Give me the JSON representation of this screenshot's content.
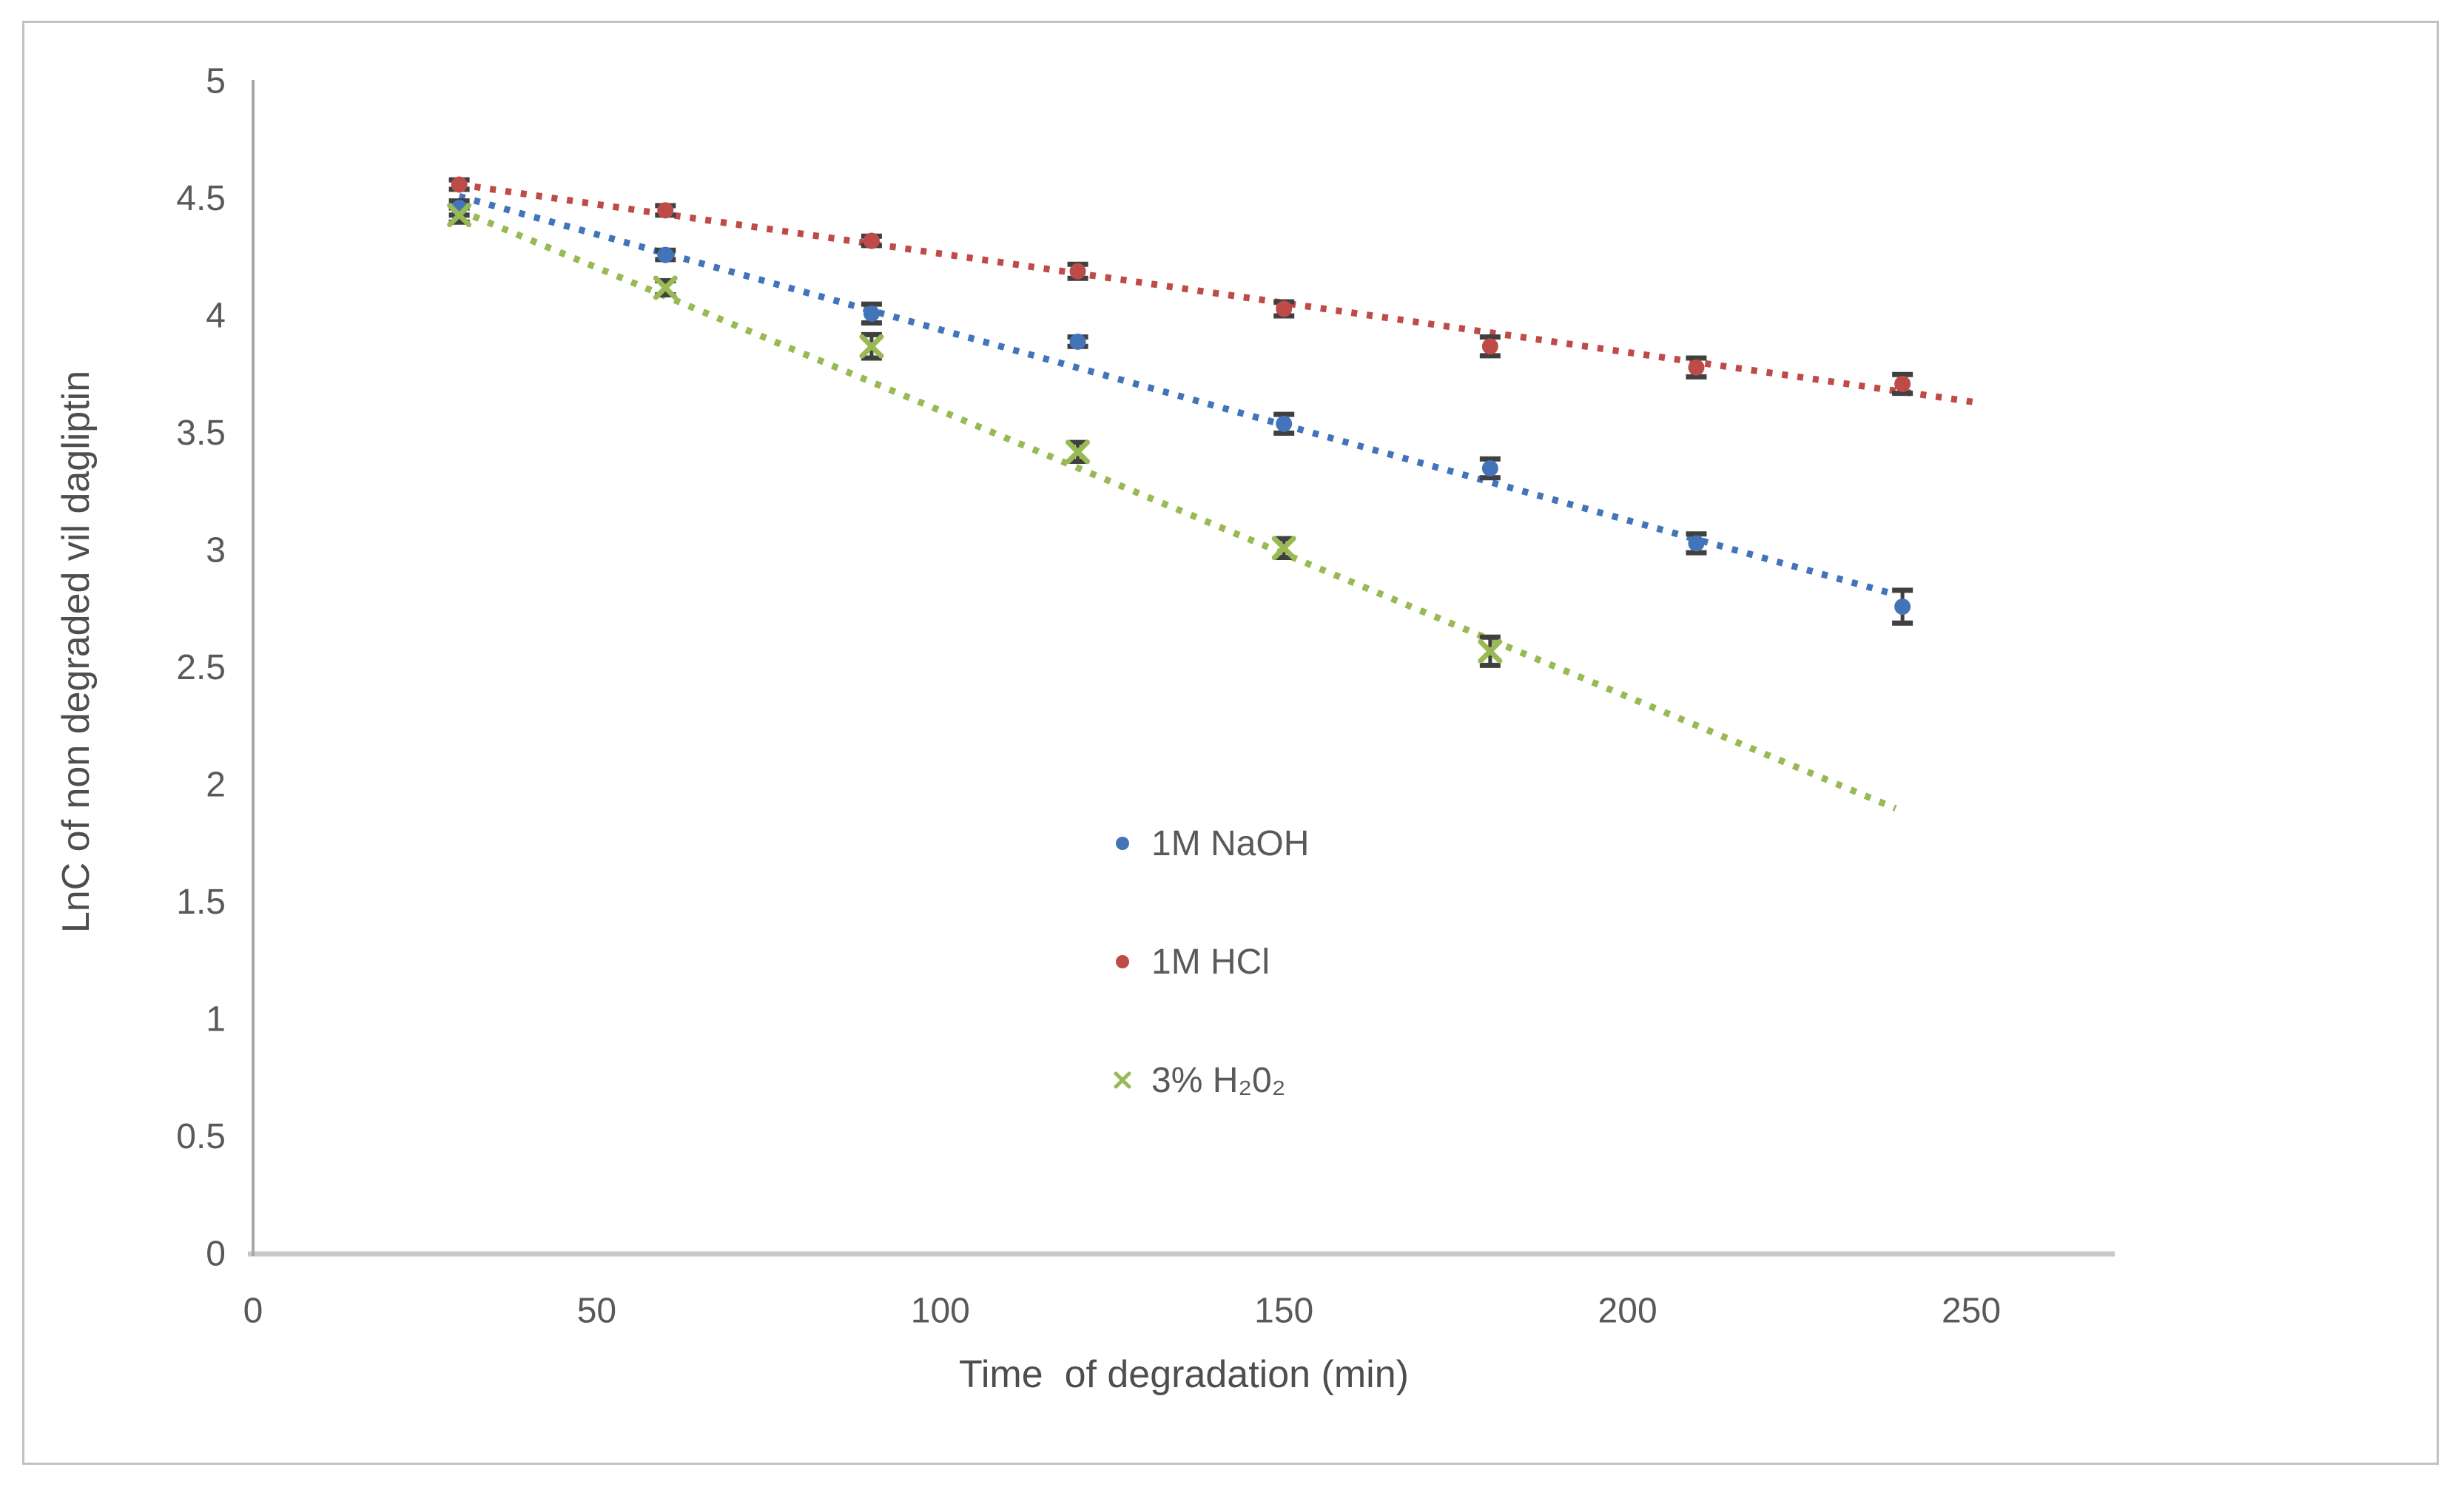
{
  "figure": {
    "background": "#ffffff",
    "border_color": "#c2c2c2",
    "axis_line_color_x": "#c9c9c9",
    "axis_line_color_y": "#a8a8a8",
    "error_bar_color": "#404040",
    "text_color": "#595959"
  },
  "chart_data": {
    "type": "scatter",
    "title": "",
    "xlabel": "Time  of degradation (min)",
    "ylabel": "LnC of non degraded vil dagliptin",
    "xlim": [
      0,
      271
    ],
    "ylim": [
      0,
      5
    ],
    "x_ticks": [
      0,
      50,
      100,
      150,
      200,
      250
    ],
    "x_tick_labels": [
      "0",
      "50",
      "100",
      "150",
      "200",
      "250"
    ],
    "y_ticks": [
      0,
      0.5,
      1,
      1.5,
      2,
      2.5,
      3,
      3.5,
      4,
      4.5,
      5
    ],
    "y_tick_labels": [
      "0",
      "0.5",
      "1",
      "1.5",
      "2",
      "2.5",
      "3",
      "3.5",
      "4",
      "4.5",
      "5"
    ],
    "grid": false,
    "legend_position": "center-right-lower",
    "series": [
      {
        "name": "1M NaOH",
        "color": "#4374b9",
        "marker": "circle",
        "line_style": "dotted",
        "x": [
          30,
          60,
          90,
          120,
          150,
          180,
          210,
          240
        ],
        "y": [
          4.46,
          4.26,
          4.01,
          3.89,
          3.54,
          3.35,
          3.03,
          2.76
        ],
        "yerr": [
          0.03,
          0.02,
          0.04,
          0.02,
          0.04,
          0.04,
          0.04,
          0.07
        ],
        "trendline": {
          "x1": 30,
          "y1": 4.51,
          "x2": 238,
          "y2": 2.82
        }
      },
      {
        "name": "1M HCl",
        "color": "#be4b48",
        "marker": "circle",
        "line_style": "dotted",
        "x": [
          30,
          60,
          90,
          120,
          150,
          180,
          210,
          240
        ],
        "y": [
          4.56,
          4.45,
          4.32,
          4.19,
          4.03,
          3.87,
          3.78,
          3.71
        ],
        "yerr": [
          0.02,
          0.02,
          0.02,
          0.03,
          0.03,
          0.04,
          0.04,
          0.04
        ],
        "trendline": {
          "x1": 30,
          "y1": 4.56,
          "x2": 251,
          "y2": 3.63
        }
      },
      {
        "name": "3% H₂0₂",
        "color": "#98b954",
        "marker": "x",
        "line_style": "dotted",
        "x": [
          30,
          60,
          90,
          120,
          150,
          180
        ],
        "y": [
          4.43,
          4.12,
          3.87,
          3.42,
          3.01,
          2.57
        ],
        "yerr": [
          0.03,
          0.03,
          0.05,
          0.04,
          0.04,
          0.06
        ],
        "trendline": {
          "x1": 30,
          "y1": 4.45,
          "x2": 239,
          "y2": 1.9
        }
      }
    ]
  }
}
